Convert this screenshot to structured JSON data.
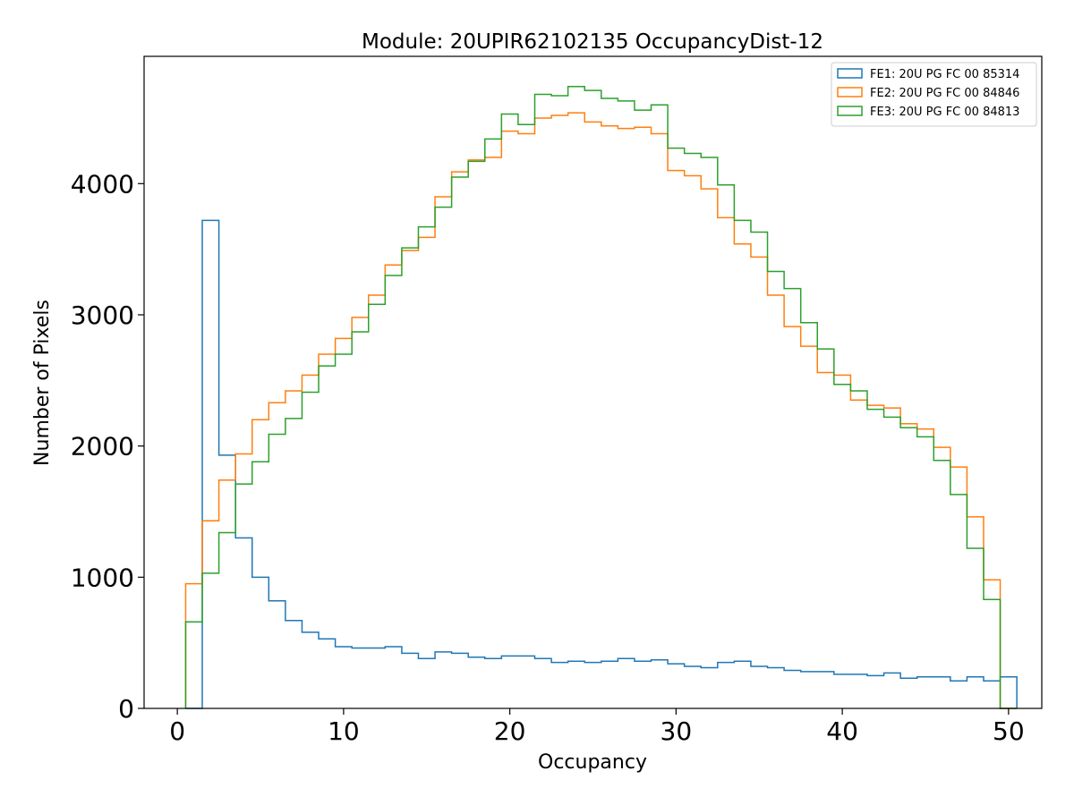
{
  "chart_data": {
    "type": "histogram-step",
    "title": "Module: 20UPIR62102135 OccupancyDist-12",
    "xlabel": "Occupancy",
    "ylabel": "Number of Pixels",
    "xlim": [
      -2,
      52
    ],
    "ylim": [
      0,
      4970
    ],
    "xticks": [
      0,
      10,
      20,
      30,
      40,
      50
    ],
    "yticks": [
      0,
      1000,
      2000,
      3000,
      4000
    ],
    "legend_position": "top-right",
    "bin_edges_start": 0.5,
    "bin_width": 1,
    "series": [
      {
        "name": "FE1: 20U PG FC 00 85314",
        "color": "#1f77b4",
        "values": [
          0,
          3720,
          1930,
          1300,
          1000,
          820,
          670,
          580,
          530,
          470,
          460,
          460,
          470,
          420,
          380,
          430,
          420,
          390,
          380,
          400,
          400,
          380,
          350,
          360,
          350,
          360,
          380,
          360,
          370,
          340,
          320,
          310,
          350,
          360,
          320,
          310,
          290,
          280,
          280,
          260,
          260,
          250,
          270,
          230,
          240,
          240,
          210,
          240,
          210,
          240
        ]
      },
      {
        "name": "FE2: 20U PG FC 00 84846",
        "color": "#ff7f0e",
        "values": [
          950,
          1430,
          1740,
          1940,
          2200,
          2330,
          2420,
          2540,
          2700,
          2820,
          2980,
          3150,
          3380,
          3490,
          3590,
          3900,
          4090,
          4180,
          4200,
          4400,
          4380,
          4500,
          4520,
          4540,
          4470,
          4440,
          4420,
          4430,
          4380,
          4100,
          4060,
          3960,
          3740,
          3540,
          3440,
          3150,
          2910,
          2760,
          2560,
          2540,
          2350,
          2310,
          2290,
          2170,
          2130,
          1990,
          1840,
          1460,
          980,
          0
        ]
      },
      {
        "name": "FE3: 20U PG FC 00 84813",
        "color": "#2ca02c",
        "values": [
          660,
          1030,
          1340,
          1710,
          1880,
          2090,
          2210,
          2410,
          2610,
          2700,
          2870,
          3080,
          3300,
          3510,
          3670,
          3820,
          4050,
          4170,
          4340,
          4530,
          4450,
          4680,
          4670,
          4740,
          4710,
          4650,
          4630,
          4560,
          4600,
          4270,
          4230,
          4200,
          3990,
          3720,
          3630,
          3330,
          3200,
          2940,
          2740,
          2470,
          2420,
          2280,
          2220,
          2140,
          2070,
          1890,
          1630,
          1220,
          830,
          0
        ]
      }
    ]
  }
}
